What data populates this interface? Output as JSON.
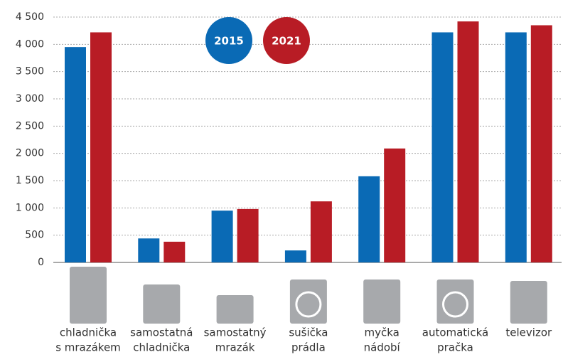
{
  "chart_data": {
    "type": "bar",
    "categories": [
      [
        "chladnička",
        "s mrazákem"
      ],
      [
        "samostatná",
        "chladnička"
      ],
      [
        "samostatný",
        "mrazák"
      ],
      [
        "sušička",
        "prádla"
      ],
      [
        "myčka",
        "nádobí"
      ],
      [
        "automatická",
        "pračka"
      ],
      [
        "televizor"
      ]
    ],
    "series": [
      {
        "name": "2015",
        "color": "#0a6ab5",
        "values": [
          3950,
          440,
          950,
          220,
          1580,
          4220,
          4220
        ]
      },
      {
        "name": "2021",
        "color": "#b81c25",
        "values": [
          4220,
          380,
          980,
          1120,
          2090,
          4420,
          4350
        ]
      }
    ],
    "ylim": [
      0,
      4500
    ],
    "yticks": [
      0,
      500,
      {
        "value": 1000,
        "label": "1 000"
      },
      {
        "value": 1500,
        "label": "1 500"
      },
      {
        "value": 2000,
        "label": "2 000"
      },
      {
        "value": 2500,
        "label": "2 500"
      },
      {
        "value": 3000,
        "label": "3 000"
      },
      {
        "value": 3500,
        "label": "3 500"
      },
      {
        "value": 4000,
        "label": "4 000"
      },
      {
        "value": 4500,
        "label": "4 500"
      }
    ],
    "grid": true
  }
}
